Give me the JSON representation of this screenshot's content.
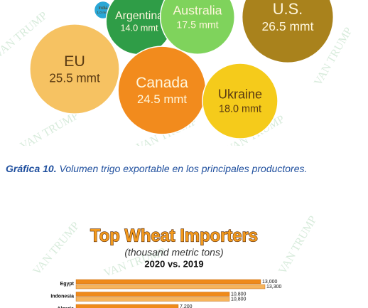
{
  "chart_data": [
    {
      "type": "bubble",
      "categories": [
        "India",
        "Argentina",
        "Australia",
        "U.S.",
        "EU",
        "Canada",
        "Ukraine"
      ],
      "values": [
        1.0,
        14.0,
        17.5,
        26.5,
        25.5,
        24.5,
        18.0
      ],
      "value_labels": [
        "1.0 mmt",
        "14.0 mmt",
        "17.5 mmt",
        "26.5 mmt",
        "25.5 mmt",
        "24.5 mmt",
        "18.0 mmt"
      ],
      "colors": [
        "#2aa7d6",
        "#2f9d47",
        "#7fd35c",
        "#a9821c",
        "#f6c262",
        "#f28b1d",
        "#f5cb1b"
      ]
    },
    {
      "type": "hbar",
      "title": "Top Wheat Importers",
      "subtitle": "(thousand metric tons)",
      "note": "2020 vs. 2019",
      "categories": [
        "Egypt",
        "Indonesia",
        "Algeria"
      ],
      "xlim": [
        0,
        15000
      ],
      "series": [
        {
          "color": "#ef8a1a",
          "values": [
            13000,
            10800,
            7200
          ],
          "value_labels": [
            "13,000",
            "10,800",
            "7,200"
          ]
        },
        {
          "color": "#f6b45c",
          "values": [
            13300,
            10800,
            null
          ],
          "value_labels": [
            "13,300",
            "10,800",
            null
          ]
        }
      ]
    }
  ],
  "caption": {
    "label": "Gráfica 10.",
    "text": "Volumen trigo exportable en los principales productores."
  },
  "watermark": "VAN TRUMP"
}
